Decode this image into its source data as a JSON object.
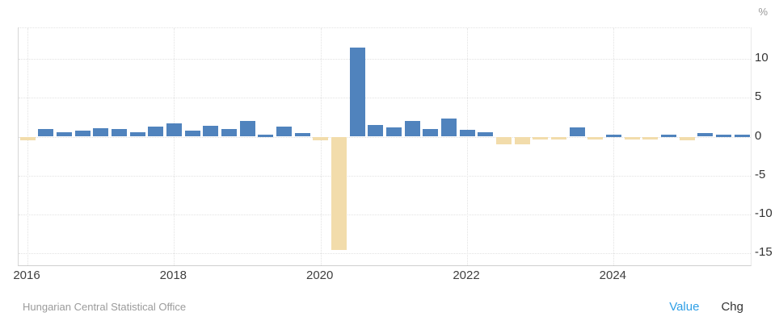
{
  "chart_data": {
    "type": "bar",
    "title": "",
    "unit": "%",
    "categories": [
      "2016 Q1",
      "2016 Q2",
      "2016 Q3",
      "2016 Q4",
      "2017 Q1",
      "2017 Q2",
      "2017 Q3",
      "2017 Q4",
      "2018 Q1",
      "2018 Q2",
      "2018 Q3",
      "2018 Q4",
      "2019 Q1",
      "2019 Q2",
      "2019 Q3",
      "2019 Q4",
      "2020 Q1",
      "2020 Q2",
      "2020 Q3",
      "2020 Q4",
      "2021 Q1",
      "2021 Q2",
      "2021 Q3",
      "2021 Q4",
      "2022 Q1",
      "2022 Q2",
      "2022 Q3",
      "2022 Q4",
      "2023 Q1",
      "2023 Q2",
      "2023 Q3",
      "2023 Q4",
      "2024 Q1",
      "2024 Q2",
      "2024 Q3",
      "2024 Q4",
      "2025 Q1",
      "2025 Q2",
      "2025 Q3",
      "2025 Q4"
    ],
    "values": [
      -0.5,
      1.0,
      0.6,
      0.8,
      1.1,
      1.0,
      0.6,
      1.3,
      1.7,
      0.8,
      1.4,
      1.0,
      2.0,
      0.3,
      1.3,
      0.5,
      -0.5,
      -14.5,
      11.4,
      1.5,
      1.2,
      2.0,
      1.0,
      2.3,
      0.9,
      0.6,
      -1.0,
      -1.0,
      -0.3,
      -0.2,
      1.2,
      -0.2,
      0.2,
      -0.2,
      -0.4,
      0.2,
      -0.5,
      0.5,
      0.2,
      0.1
    ],
    "bar_color_positive": "#5083bd",
    "bar_color_negative": "#f2dcab",
    "y_ticks": [
      10,
      5,
      0,
      -5,
      -10,
      -15
    ],
    "y_tick_labels": [
      "10",
      "5",
      "0",
      "-5",
      "-10",
      "-15"
    ],
    "x_ticks": [
      {
        "label": "2016",
        "quarter_index": 0
      },
      {
        "label": "2018",
        "quarter_index": 8
      },
      {
        "label": "2020",
        "quarter_index": 16
      },
      {
        "label": "2022",
        "quarter_index": 24
      },
      {
        "label": "2024",
        "quarter_index": 32
      }
    ],
    "ylim": [
      -16.7,
      13.9
    ],
    "grid": "dotted",
    "legend_position": "none"
  },
  "footer": {
    "source": "Hungarian Central Statistical Office",
    "value_label": "Value",
    "chg_label": "Chg"
  }
}
